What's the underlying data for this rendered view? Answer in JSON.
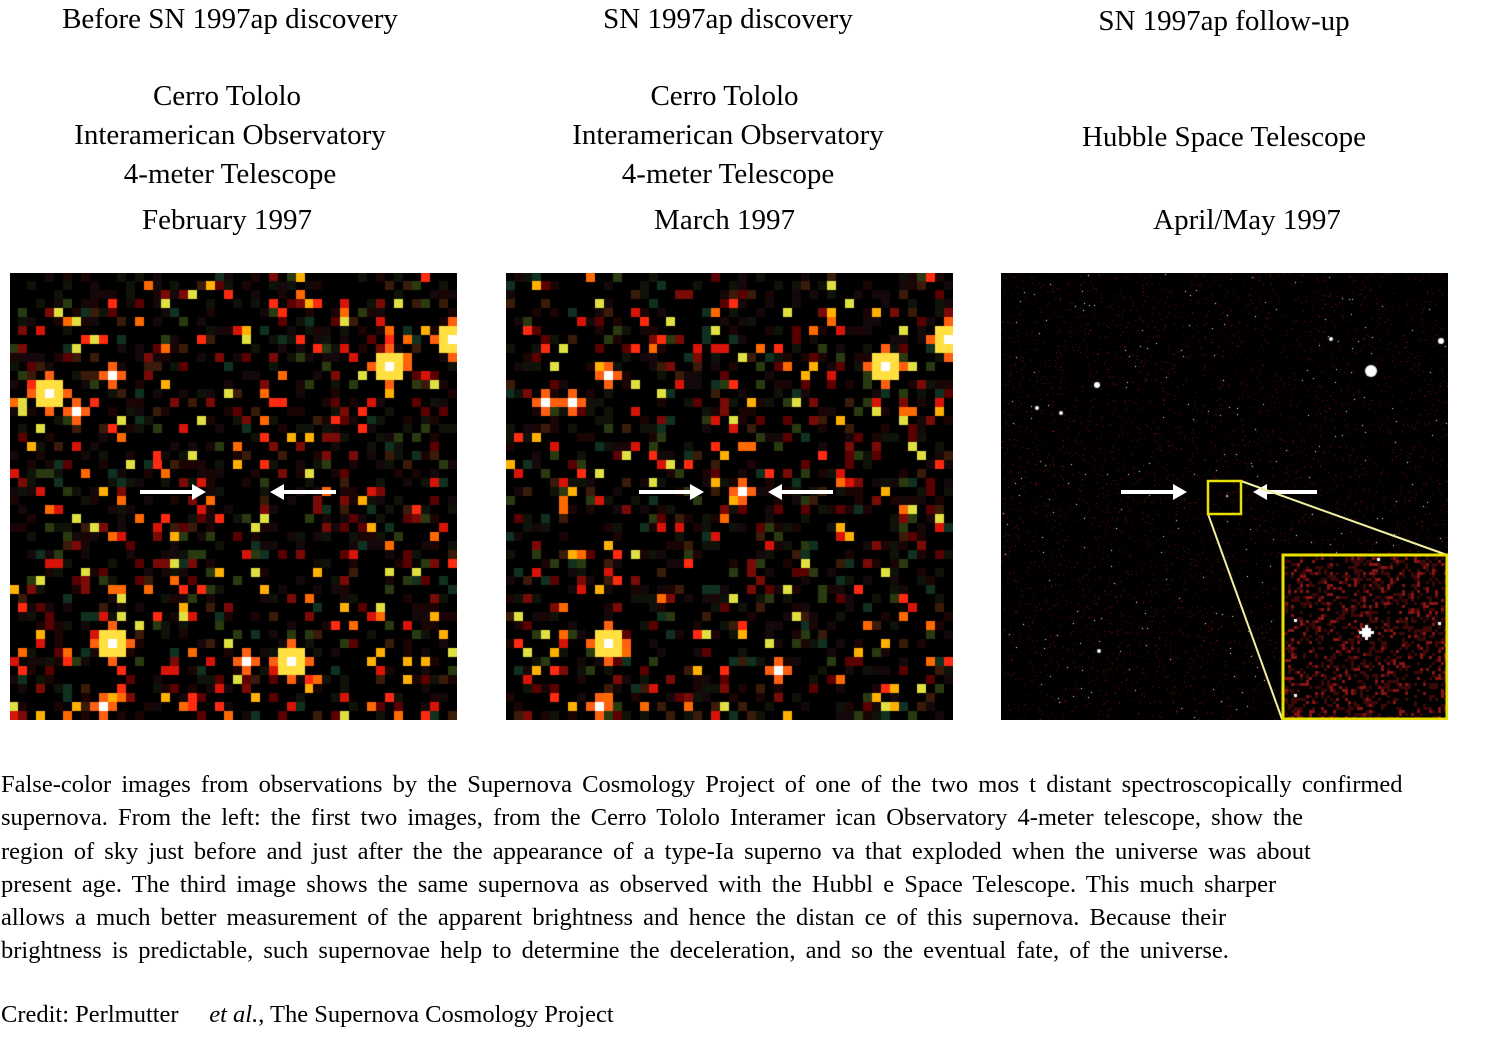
{
  "panels": [
    {
      "title": "Before SN 1997ap discovery",
      "observatory_lines": [
        "Cerro Tololo",
        "Interamerican Observatory",
        "4-meter Telescope"
      ],
      "date": "February 1997"
    },
    {
      "title": "SN 1997ap discovery",
      "observatory_lines": [
        "Cerro Tololo",
        "Interamerican Observatory",
        "4-meter Telescope"
      ],
      "date": "March 1997"
    },
    {
      "title": "SN 1997ap follow-up",
      "observatory_lines": [
        "Hubble Space Telescope"
      ],
      "date": "April/May 1997"
    }
  ],
  "caption_lines": [
    "False-color  images  from  observations  by the Supernova  Cosmology  Project  of one  of the  two  mos t distant  spectroscopically  confirmed",
    "supernova.   From  the  left:  the  first  two  images,  from  the  Cerro  Tololo  Interamer ican  Observatory   4-meter  telescope,  show  the",
    "region  of sky  just before  and  just  after  the  the  appearance   of a  type-Ia  superno va  that  exploded   when  the  universe   was  about",
    "present  age.  The  third  image  shows  the  same  supernova   as observed   with  the  Hubbl e Space   Telescope.  This  much  sharper",
    "allows  a  much  better  measurement   of  the  apparent  brightness   and  hence  the  distan ce  of  this  supernova.    Because  their",
    "brightness is predictable, such supernovae help to determine the deceleration, and so the eventual fate, of the universe."
  ],
  "credit": {
    "prefix": "Credit:  Perlmutter",
    "italic": "et al.",
    "suffix": ", The Supernova Cosmology Project"
  },
  "colors": {
    "arrow": "#ffffff",
    "zoom_box": "#e8e000",
    "zoom_lines": "#f0eea0"
  }
}
